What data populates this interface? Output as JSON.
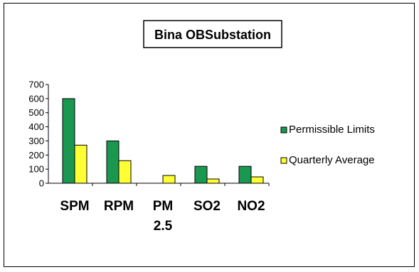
{
  "chart_data": {
    "type": "bar",
    "title": "Bina OBSubstation",
    "categories": [
      "SPM",
      "RPM",
      "PM 2.5",
      "SO2",
      "NO2"
    ],
    "category_lines": [
      [
        "SPM"
      ],
      [
        "RPM"
      ],
      [
        "PM",
        "2.5"
      ],
      [
        "SO2"
      ],
      [
        "NO2"
      ]
    ],
    "series": [
      {
        "name": "Permissible Limits",
        "color": "#1a9850",
        "values": [
          600,
          300,
          0,
          120,
          120
        ]
      },
      {
        "name": "Quarterly Average",
        "color": "#ffff33",
        "values": [
          270,
          160,
          55,
          30,
          45
        ]
      }
    ],
    "ylim": [
      0,
      700
    ],
    "yticks": [
      0,
      100,
      200,
      300,
      400,
      500,
      600,
      700
    ],
    "grid": false,
    "legend_position": "right",
    "xlabel": "",
    "ylabel": ""
  }
}
